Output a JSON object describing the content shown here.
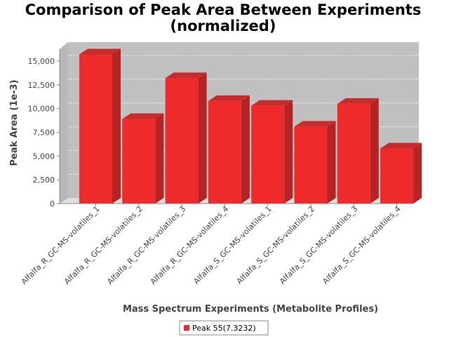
{
  "chart_data": {
    "type": "bar",
    "title_line1": "Comparison of Peak Area Between Experiments",
    "title_line2": "(normalized)",
    "xlabel": "Mass Spectrum Experiments (Metabolite Profiles)",
    "ylabel": "Peak Area (1e-3)",
    "ylim": [
      0,
      16500
    ],
    "yticks": [
      0,
      2500,
      5000,
      7500,
      10000,
      12500,
      15000
    ],
    "ytick_labels": [
      "0",
      "2,500",
      "5,000",
      "7,500",
      "10,000",
      "12,500",
      "15,000"
    ],
    "categories": [
      "Alfalfa_R_GC-MS-volatiles_1",
      "Alfalfa_R_GC-MS-volatiles_2",
      "Alfalfa_R_GC-MS-volatiles_3",
      "Alfalfa_R_GC-MS-volatiles_4",
      "Alfalfa_S_GC-MS-volatiles_1",
      "Alfalfa_S_GC-MS-volatiles_2",
      "Alfalfa_S_GC-MS-volatiles_3",
      "Alfalfa_S_GC-MS-volatiles_4"
    ],
    "series": [
      {
        "name": "Peak 55(7.3232)",
        "color": "#ee2a2a",
        "values": [
          15700,
          8900,
          13200,
          10800,
          10300,
          8100,
          10500,
          5800
        ]
      }
    ],
    "grid": true,
    "legend": "bottom-center",
    "style": "3d-bar"
  }
}
